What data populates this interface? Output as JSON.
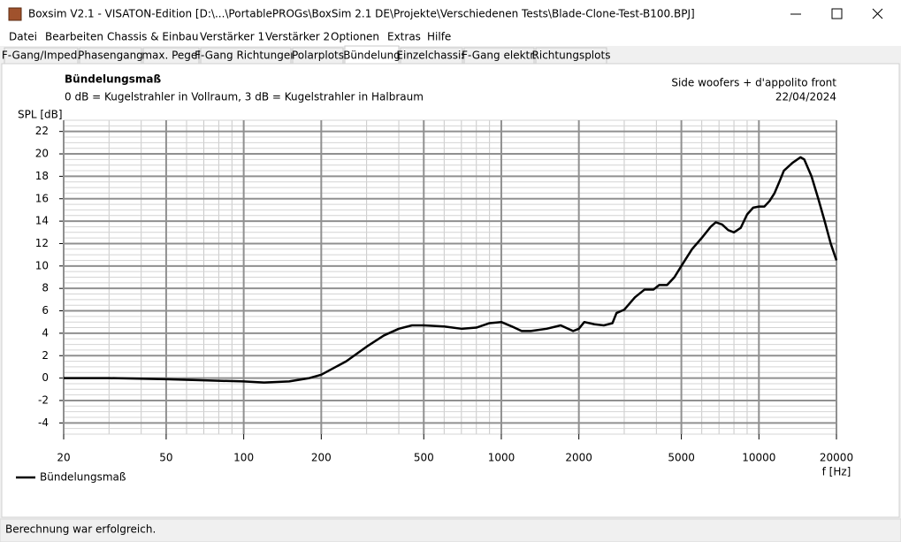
{
  "window": {
    "title": "Boxsim V2.1 - VISATON-Edition [D:\\...\\PortablePROGs\\BoxSim 2.1 DE\\Projekte\\Verschiedenen Tests\\Blade-Clone-Test-B100.BPJ]"
  },
  "menu": [
    "Datei",
    "Bearbeiten",
    "Chassis & Einbau",
    "Verstärker 1",
    "Verstärker 2",
    "Optionen",
    "Extras",
    "Hilfe"
  ],
  "tabs": [
    {
      "label": "F-Gang/Imped.",
      "selected": false
    },
    {
      "label": "Phasengang",
      "selected": false
    },
    {
      "label": "max. Pegel",
      "selected": false
    },
    {
      "label": "F-Gang Richtungen",
      "selected": false
    },
    {
      "label": "Polarplots",
      "selected": false
    },
    {
      "label": "Bündelung",
      "selected": true
    },
    {
      "label": "Einzelchassis",
      "selected": false
    },
    {
      "label": "F-Gang elektr.",
      "selected": false
    },
    {
      "label": "Richtungsplots",
      "selected": false
    }
  ],
  "chart_data": {
    "type": "line",
    "title": "Bündelungsmaß",
    "subtitle": "0 dB = Kugelstrahler in Vollraum, 3 dB = Kugelstrahler in Halbraum",
    "annotations": [
      "Side woofers + d'appolito front",
      "22/04/2024"
    ],
    "y_label": "SPL [dB]",
    "x_label": "f [Hz]",
    "x": [
      20,
      30,
      50,
      70,
      100,
      120,
      150,
      180,
      200,
      250,
      300,
      350,
      400,
      450,
      500,
      600,
      700,
      800,
      900,
      1000,
      1100,
      1200,
      1300,
      1500,
      1700,
      1900,
      2000,
      2100,
      2300,
      2500,
      2700,
      2800,
      3000,
      3300,
      3600,
      3900,
      4100,
      4400,
      4700,
      5000,
      5500,
      6000,
      6500,
      6800,
      7200,
      7600,
      8000,
      8500,
      9000,
      9500,
      10000,
      10500,
      11000,
      11500,
      12000,
      12500,
      13500,
      14500,
      15000,
      16000,
      17000,
      18000,
      19000,
      20000
    ],
    "series": [
      {
        "name": "Bündelungsmaß",
        "color": "#000000",
        "values": [
          0,
          0,
          -0.1,
          -0.2,
          -0.3,
          -0.4,
          -0.3,
          0,
          0.3,
          1.5,
          2.8,
          3.8,
          4.4,
          4.7,
          4.7,
          4.6,
          4.4,
          4.5,
          4.9,
          5.0,
          4.6,
          4.2,
          4.2,
          4.4,
          4.7,
          4.2,
          4.4,
          5.0,
          4.8,
          4.7,
          4.9,
          5.8,
          6.1,
          7.2,
          7.9,
          7.9,
          8.3,
          8.3,
          9.0,
          10.0,
          11.5,
          12.5,
          13.5,
          13.9,
          13.7,
          13.2,
          13.0,
          13.4,
          14.6,
          15.2,
          15.3,
          15.3,
          15.8,
          16.5,
          17.5,
          18.5,
          19.2,
          19.7,
          19.5,
          18.0,
          16.0,
          14.0,
          12.0,
          10.5
        ]
      }
    ],
    "xlim": [
      20,
      20000
    ],
    "ylim": [
      -5,
      23
    ],
    "xticks": [
      20,
      50,
      100,
      200,
      500,
      1000,
      2000,
      5000,
      10000,
      20000
    ],
    "yticks": [
      -4,
      -2,
      0,
      2,
      4,
      6,
      8,
      10,
      12,
      14,
      16,
      18,
      20,
      22
    ],
    "xscale": "log",
    "grid": true,
    "legend": "bottom-left"
  },
  "status": "Berechnung war erfolgreich."
}
